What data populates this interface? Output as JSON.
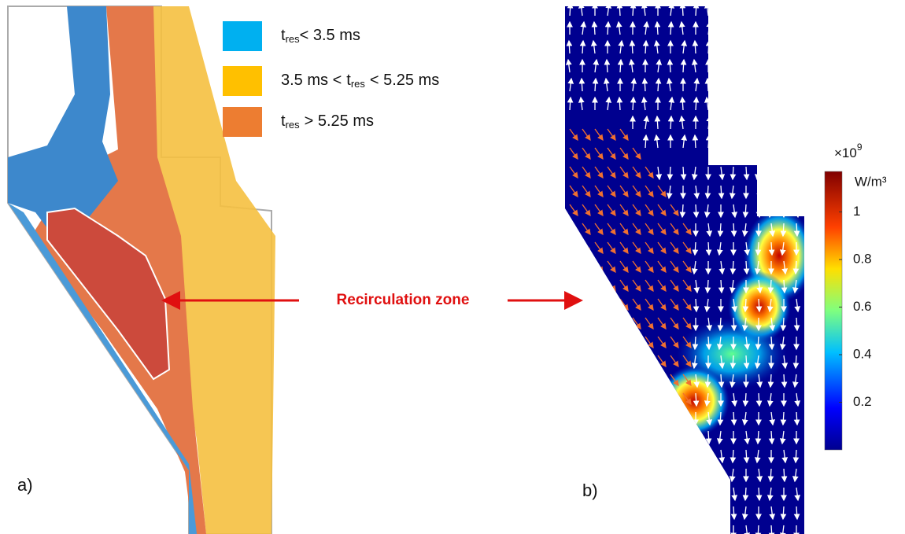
{
  "panel_a": {
    "label": "a)",
    "legend": [
      {
        "color": "#00b0f0",
        "symbol": "t",
        "sub": "res",
        "after": "< 3.5 ms"
      },
      {
        "color": "#ffc000",
        "before": "3.5 ms <",
        "symbol": "t",
        "sub": "res",
        "after": "< 5.25 ms"
      },
      {
        "color": "#ed7d31",
        "symbol": "t",
        "sub": "res",
        "after": "> 5.25 ms"
      }
    ]
  },
  "annotation": "Recirculation zone",
  "panel_b": {
    "label": "b)",
    "colorbar": {
      "multiplier": "×10",
      "power": "9",
      "unit": "W/m³",
      "ticks": [
        1,
        0.8,
        0.6,
        0.4,
        0.2
      ],
      "range": [
        0,
        1.17
      ]
    }
  }
}
